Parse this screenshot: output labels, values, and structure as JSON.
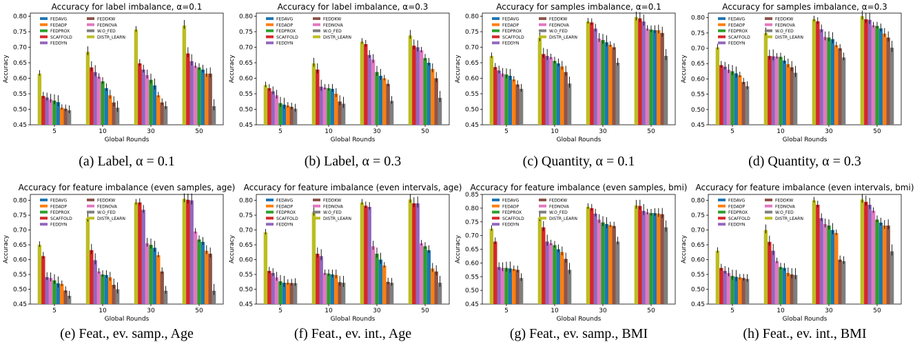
{
  "figure": {
    "methods": [
      {
        "name": "FEDAVG",
        "color": "#1f77b4"
      },
      {
        "name": "FEDADP",
        "color": "#ff7f0e"
      },
      {
        "name": "FEDPROX",
        "color": "#2ca02c"
      },
      {
        "name": "SCAFFOLD",
        "color": "#d62728"
      },
      {
        "name": "FEDDYN",
        "color": "#9467bd"
      },
      {
        "name": "FEDDKW",
        "color": "#8c564b"
      },
      {
        "name": "FEDNOVA",
        "color": "#e377c2"
      },
      {
        "name": "W.O_FED",
        "color": "#7f7f7f"
      },
      {
        "name": "DISTR_LEARN",
        "color": "#bcbd22"
      }
    ],
    "draw_order": [
      "DISTR_LEARN",
      "SCAFFOLD",
      "FEDDYN",
      "FEDNOVA",
      "FEDPROX",
      "FEDAVG",
      "FEDADP",
      "FEDDKW",
      "W.O_FED"
    ]
  },
  "chart_data": [
    {
      "type": "bar",
      "title": "Accuracy for label imbalance, α=0.1",
      "caption": "(a) Label, α = 0.1",
      "xlabel": "Global Rounds",
      "ylabel": "Accuracy",
      "categories": [
        "5",
        "10",
        "30",
        "50"
      ],
      "ylim": [
        0.45,
        0.81
      ],
      "yticks": [
        "0.45",
        "0.50",
        "0.55",
        "0.60",
        "0.65",
        "0.70",
        "0.75",
        "0.80"
      ],
      "series": [
        {
          "name": "DISTR_LEARN",
          "values": [
            0.615,
            0.685,
            0.757,
            0.77
          ]
        },
        {
          "name": "SCAFFOLD",
          "values": [
            0.543,
            0.635,
            0.648,
            0.68
          ]
        },
        {
          "name": "FEDDYN",
          "values": [
            0.538,
            0.62,
            0.628,
            0.655
          ]
        },
        {
          "name": "FEDNOVA",
          "values": [
            0.532,
            0.605,
            0.61,
            0.64
          ]
        },
        {
          "name": "FEDPROX",
          "values": [
            0.528,
            0.59,
            0.595,
            0.635
          ]
        },
        {
          "name": "FEDAVG",
          "values": [
            0.523,
            0.568,
            0.577,
            0.628
          ]
        },
        {
          "name": "FEDADP",
          "values": [
            0.505,
            0.545,
            0.545,
            0.615
          ]
        },
        {
          "name": "FEDDKW",
          "values": [
            0.502,
            0.522,
            0.522,
            0.615
          ]
        },
        {
          "name": "W.O_FED",
          "values": [
            0.497,
            0.505,
            0.51,
            0.51
          ]
        }
      ]
    },
    {
      "type": "bar",
      "title": "Accuracy for label imbalance, α=0.3",
      "caption": "(b) Label, α = 0.3",
      "xlabel": "Global Rounds",
      "ylabel": "Accuracy",
      "categories": [
        "5",
        "10",
        "30",
        "50"
      ],
      "ylim": [
        0.45,
        0.81
      ],
      "yticks": [
        "0.45",
        "0.50",
        "0.55",
        "0.60",
        "0.65",
        "0.70",
        "0.75",
        "0.80"
      ],
      "series": [
        {
          "name": "DISTR_LEARN",
          "values": [
            0.578,
            0.648,
            0.718,
            0.738
          ]
        },
        {
          "name": "SCAFFOLD",
          "values": [
            0.568,
            0.628,
            0.71,
            0.705
          ]
        },
        {
          "name": "FEDDYN",
          "values": [
            0.558,
            0.573,
            0.675,
            0.7
          ]
        },
        {
          "name": "FEDNOVA",
          "values": [
            0.545,
            0.57,
            0.66,
            0.69
          ]
        },
        {
          "name": "FEDPROX",
          "values": [
            0.52,
            0.568,
            0.62,
            0.665
          ]
        },
        {
          "name": "FEDAVG",
          "values": [
            0.515,
            0.566,
            0.608,
            0.65
          ]
        },
        {
          "name": "FEDADP",
          "values": [
            0.512,
            0.55,
            0.6,
            0.63
          ]
        },
        {
          "name": "FEDDKW",
          "values": [
            0.508,
            0.525,
            0.582,
            0.6
          ]
        },
        {
          "name": "W.O_FED",
          "values": [
            0.502,
            0.518,
            0.527,
            0.537
          ]
        }
      ]
    },
    {
      "type": "bar",
      "title": "Accuracy for samples imbalance, α=0.1",
      "caption": "(c) Quantity, α = 0.1",
      "xlabel": "Global Rounds",
      "ylabel": "Accuracy",
      "categories": [
        "5",
        "10",
        "30",
        "50"
      ],
      "ylim": [
        0.45,
        0.81
      ],
      "yticks": [
        "0.45",
        "0.50",
        "0.55",
        "0.60",
        "0.65",
        "0.70",
        "0.75",
        "0.80"
      ],
      "series": [
        {
          "name": "DISTR_LEARN",
          "values": [
            0.672,
            0.73,
            0.783,
            0.797
          ]
        },
        {
          "name": "SCAFFOLD",
          "values": [
            0.636,
            0.678,
            0.78,
            0.793
          ]
        },
        {
          "name": "FEDDYN",
          "values": [
            0.625,
            0.672,
            0.76,
            0.783
          ]
        },
        {
          "name": "FEDNOVA",
          "values": [
            0.615,
            0.668,
            0.728,
            0.76
          ]
        },
        {
          "name": "FEDPROX",
          "values": [
            0.612,
            0.656,
            0.723,
            0.757
          ]
        },
        {
          "name": "FEDAVG",
          "values": [
            0.608,
            0.648,
            0.716,
            0.755
          ]
        },
        {
          "name": "FEDADP",
          "values": [
            0.596,
            0.638,
            0.708,
            0.755
          ]
        },
        {
          "name": "FEDDKW",
          "values": [
            0.58,
            0.62,
            0.7,
            0.746
          ]
        },
        {
          "name": "W.O_FED",
          "values": [
            0.566,
            0.583,
            0.65,
            0.672
          ]
        }
      ]
    },
    {
      "type": "bar",
      "title": "Accuracy for samples imbalance, α=0.3",
      "caption": "(d) Quantity, α = 0.3",
      "xlabel": "Global Rounds",
      "ylabel": "Accuracy",
      "categories": [
        "5",
        "10",
        "30",
        "50"
      ],
      "ylim": [
        0.45,
        0.815
      ],
      "yticks": [
        "0.45",
        "0.50",
        "0.55",
        "0.60",
        "0.65",
        "0.70",
        "0.75",
        "0.80"
      ],
      "series": [
        {
          "name": "DISTR_LEARN",
          "values": [
            0.703,
            0.75,
            0.795,
            0.805
          ]
        },
        {
          "name": "SCAFFOLD",
          "values": [
            0.645,
            0.675,
            0.788,
            0.795
          ]
        },
        {
          "name": "FEDDYN",
          "values": [
            0.64,
            0.674,
            0.762,
            0.793
          ]
        },
        {
          "name": "FEDNOVA",
          "values": [
            0.63,
            0.673,
            0.737,
            0.775
          ]
        },
        {
          "name": "FEDPROX",
          "values": [
            0.625,
            0.672,
            0.735,
            0.773
          ]
        },
        {
          "name": "FEDAVG",
          "values": [
            0.618,
            0.66,
            0.73,
            0.765
          ]
        },
        {
          "name": "FEDADP",
          "values": [
            0.612,
            0.648,
            0.71,
            0.748
          ]
        },
        {
          "name": "FEDDKW",
          "values": [
            0.59,
            0.638,
            0.7,
            0.735
          ]
        },
        {
          "name": "W.O_FED",
          "values": [
            0.576,
            0.62,
            0.67,
            0.702
          ]
        }
      ]
    },
    {
      "type": "bar",
      "title": "Accuracy for feature imbalance (even samples, age)",
      "caption": "(e) Feat., ev. samp., Age",
      "xlabel": "Global Rounds",
      "ylabel": "Accuracy",
      "categories": [
        "5",
        "10",
        "30",
        "50"
      ],
      "ylim": [
        0.45,
        0.82
      ],
      "yticks": [
        "0.45",
        "0.50",
        "0.55",
        "0.60",
        "0.65",
        "0.70",
        "0.75",
        "0.80"
      ],
      "series": [
        {
          "name": "DISTR_LEARN",
          "values": [
            0.65,
            0.74,
            0.793,
            0.805
          ]
        },
        {
          "name": "SCAFFOLD",
          "values": [
            0.612,
            0.632,
            0.793,
            0.802
          ]
        },
        {
          "name": "FEDDYN",
          "values": [
            0.541,
            0.598,
            0.768,
            0.8
          ]
        },
        {
          "name": "FEDNOVA",
          "values": [
            0.538,
            0.56,
            0.655,
            0.695
          ]
        },
        {
          "name": "FEDPROX",
          "values": [
            0.53,
            0.55,
            0.65,
            0.668
          ]
        },
        {
          "name": "FEDAVG",
          "values": [
            0.52,
            0.548,
            0.64,
            0.66
          ]
        },
        {
          "name": "FEDADP",
          "values": [
            0.518,
            0.54,
            0.615,
            0.63
          ]
        },
        {
          "name": "FEDDKW",
          "values": [
            0.496,
            0.515,
            0.56,
            0.62
          ]
        },
        {
          "name": "W.O_FED",
          "values": [
            0.478,
            0.5,
            0.495,
            0.495
          ]
        }
      ]
    },
    {
      "type": "bar",
      "title": "Accuracy for feature imbalance (even intervals, age)",
      "caption": "(f) Feat., ev. int., Age",
      "xlabel": "Global Rounds",
      "ylabel": "Accuracy",
      "categories": [
        "5",
        "10",
        "30",
        "50"
      ],
      "ylim": [
        0.45,
        0.82
      ],
      "yticks": [
        "0.45",
        "0.50",
        "0.55",
        "0.60",
        "0.65",
        "0.70",
        "0.75",
        "0.80"
      ],
      "series": [
        {
          "name": "DISTR_LEARN",
          "values": [
            0.692,
            0.76,
            0.793,
            0.803
          ]
        },
        {
          "name": "SCAFFOLD",
          "values": [
            0.562,
            0.62,
            0.782,
            0.79
          ]
        },
        {
          "name": "FEDDYN",
          "values": [
            0.555,
            0.612,
            0.778,
            0.79
          ]
        },
        {
          "name": "FEDNOVA",
          "values": [
            0.54,
            0.555,
            0.645,
            0.655
          ]
        },
        {
          "name": "FEDPROX",
          "values": [
            0.527,
            0.553,
            0.62,
            0.645
          ]
        },
        {
          "name": "FEDAVG",
          "values": [
            0.522,
            0.55,
            0.6,
            0.632
          ]
        },
        {
          "name": "FEDADP",
          "values": [
            0.522,
            0.548,
            0.58,
            0.57
          ]
        },
        {
          "name": "FEDDKW",
          "values": [
            0.521,
            0.524,
            0.525,
            0.56
          ]
        },
        {
          "name": "W.O_FED",
          "values": [
            0.521,
            0.522,
            0.522,
            0.522
          ]
        }
      ]
    },
    {
      "type": "bar",
      "title": "Accuracy for feature imbalance (even samples, bmi)",
      "caption": "(g) Feat., ev. samp., BMI",
      "xlabel": "Global Rounds",
      "ylabel": "Accuracy",
      "categories": [
        "5",
        "10",
        "30",
        "50"
      ],
      "ylim": [
        0.45,
        0.85
      ],
      "yticks": [
        "0.45",
        "0.50",
        "0.55",
        "0.60",
        "0.65",
        "0.70",
        "0.75",
        "0.80",
        "0.85"
      ],
      "series": [
        {
          "name": "DISTR_LEARN",
          "values": [
            0.725,
            0.765,
            0.805,
            0.81
          ]
        },
        {
          "name": "SCAFFOLD",
          "values": [
            0.678,
            0.73,
            0.8,
            0.808
          ]
        },
        {
          "name": "FEDDYN",
          "values": [
            0.585,
            0.678,
            0.78,
            0.79
          ]
        },
        {
          "name": "FEDNOVA",
          "values": [
            0.582,
            0.672,
            0.758,
            0.785
          ]
        },
        {
          "name": "FEDPROX",
          "values": [
            0.582,
            0.665,
            0.748,
            0.782
          ]
        },
        {
          "name": "FEDAVG",
          "values": [
            0.58,
            0.65,
            0.742,
            0.782
          ]
        },
        {
          "name": "FEDADP",
          "values": [
            0.578,
            0.64,
            0.738,
            0.78
          ]
        },
        {
          "name": "FEDDKW",
          "values": [
            0.575,
            0.615,
            0.735,
            0.778
          ]
        },
        {
          "name": "W.O_FED",
          "values": [
            0.545,
            0.575,
            0.678,
            0.73
          ]
        }
      ]
    },
    {
      "type": "bar",
      "title": "Accuracy for feature imbalance (even intervals, bmi)",
      "caption": "(h) Feat., ev. int., BMI",
      "xlabel": "Global Rounds",
      "ylabel": "Accuracy",
      "categories": [
        "5",
        "10",
        "30",
        "50"
      ],
      "ylim": [
        0.45,
        0.82
      ],
      "yticks": [
        "0.45",
        "0.50",
        "0.55",
        "0.60",
        "0.65",
        "0.70",
        "0.75",
        "0.80"
      ],
      "series": [
        {
          "name": "DISTR_LEARN",
          "values": [
            0.63,
            0.7,
            0.8,
            0.803
          ]
        },
        {
          "name": "SCAFFOLD",
          "values": [
            0.572,
            0.66,
            0.785,
            0.795
          ]
        },
        {
          "name": "FEDDYN",
          "values": [
            0.562,
            0.63,
            0.74,
            0.785
          ]
        },
        {
          "name": "FEDNOVA",
          "values": [
            0.555,
            0.595,
            0.72,
            0.765
          ]
        },
        {
          "name": "FEDPROX",
          "values": [
            0.545,
            0.575,
            0.715,
            0.735
          ]
        },
        {
          "name": "FEDAVG",
          "values": [
            0.542,
            0.572,
            0.7,
            0.725
          ]
        },
        {
          "name": "FEDADP",
          "values": [
            0.54,
            0.555,
            0.69,
            0.715
          ]
        },
        {
          "name": "FEDDKW",
          "values": [
            0.538,
            0.55,
            0.6,
            0.715
          ]
        },
        {
          "name": "W.O_FED",
          "values": [
            0.535,
            0.548,
            0.595,
            0.628
          ]
        }
      ]
    }
  ]
}
